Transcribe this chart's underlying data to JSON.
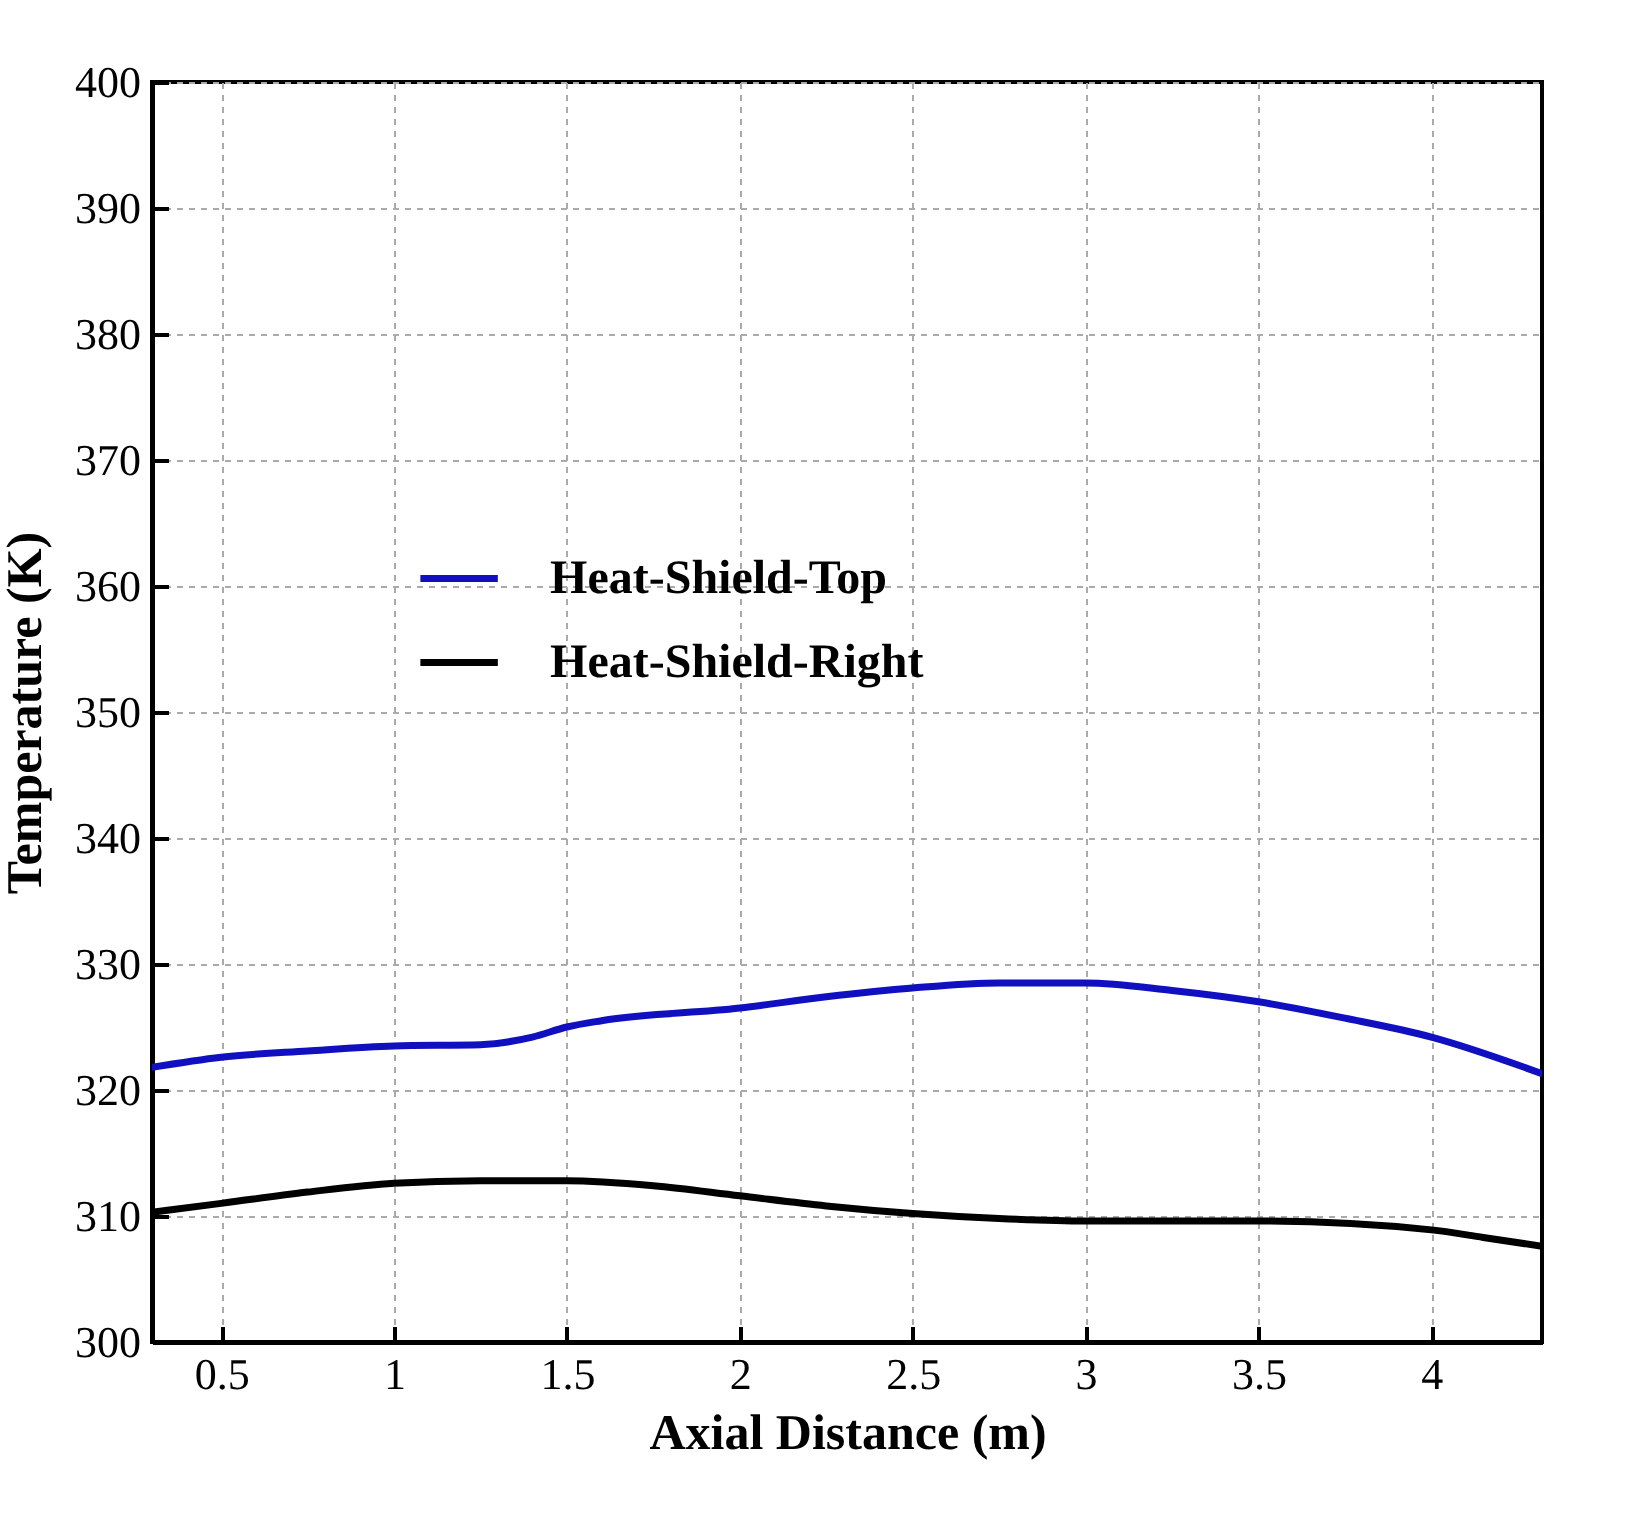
{
  "chart_data": {
    "type": "line",
    "xlabel": "Axial Distance (m)",
    "ylabel": "Temperature (K)",
    "xlim": [
      0.3,
      4.32
    ],
    "ylim": [
      300,
      400
    ],
    "xticks": [
      0.5,
      1,
      1.5,
      2,
      2.5,
      3,
      3.5,
      4
    ],
    "yticks": [
      300,
      310,
      320,
      330,
      340,
      350,
      360,
      370,
      380,
      390,
      400
    ],
    "grid": true,
    "legend": "center",
    "line_style": "solid",
    "series": [
      {
        "name": "Heat-Shield-Top",
        "color": "#1010c0",
        "x": [
          0.3,
          0.5,
          0.75,
          1,
          1.25,
          1.4,
          1.5,
          1.6,
          2,
          2.25,
          2.5,
          2.75,
          3,
          3.25,
          3.5,
          3.75,
          4,
          4.32
        ],
        "values": [
          321.8,
          322.6,
          323.1,
          323.5,
          323.6,
          324.2,
          325,
          325.5,
          326.5,
          327.4,
          328.1,
          328.5,
          328.5,
          327.9,
          327,
          325.7,
          324.2,
          321.3
        ]
      },
      {
        "name": "Heat-Shield-Right",
        "color": "#000000",
        "x": [
          0.3,
          0.5,
          0.75,
          1,
          1.25,
          1.5,
          1.75,
          2,
          2.25,
          2.5,
          2.75,
          3,
          3.5,
          4,
          4.15,
          4.32
        ],
        "values": [
          310.3,
          311,
          311.9,
          312.6,
          312.8,
          312.8,
          312.4,
          311.6,
          310.8,
          310.2,
          309.8,
          309.6,
          309.6,
          308.9,
          308.3,
          307.6
        ]
      }
    ]
  }
}
